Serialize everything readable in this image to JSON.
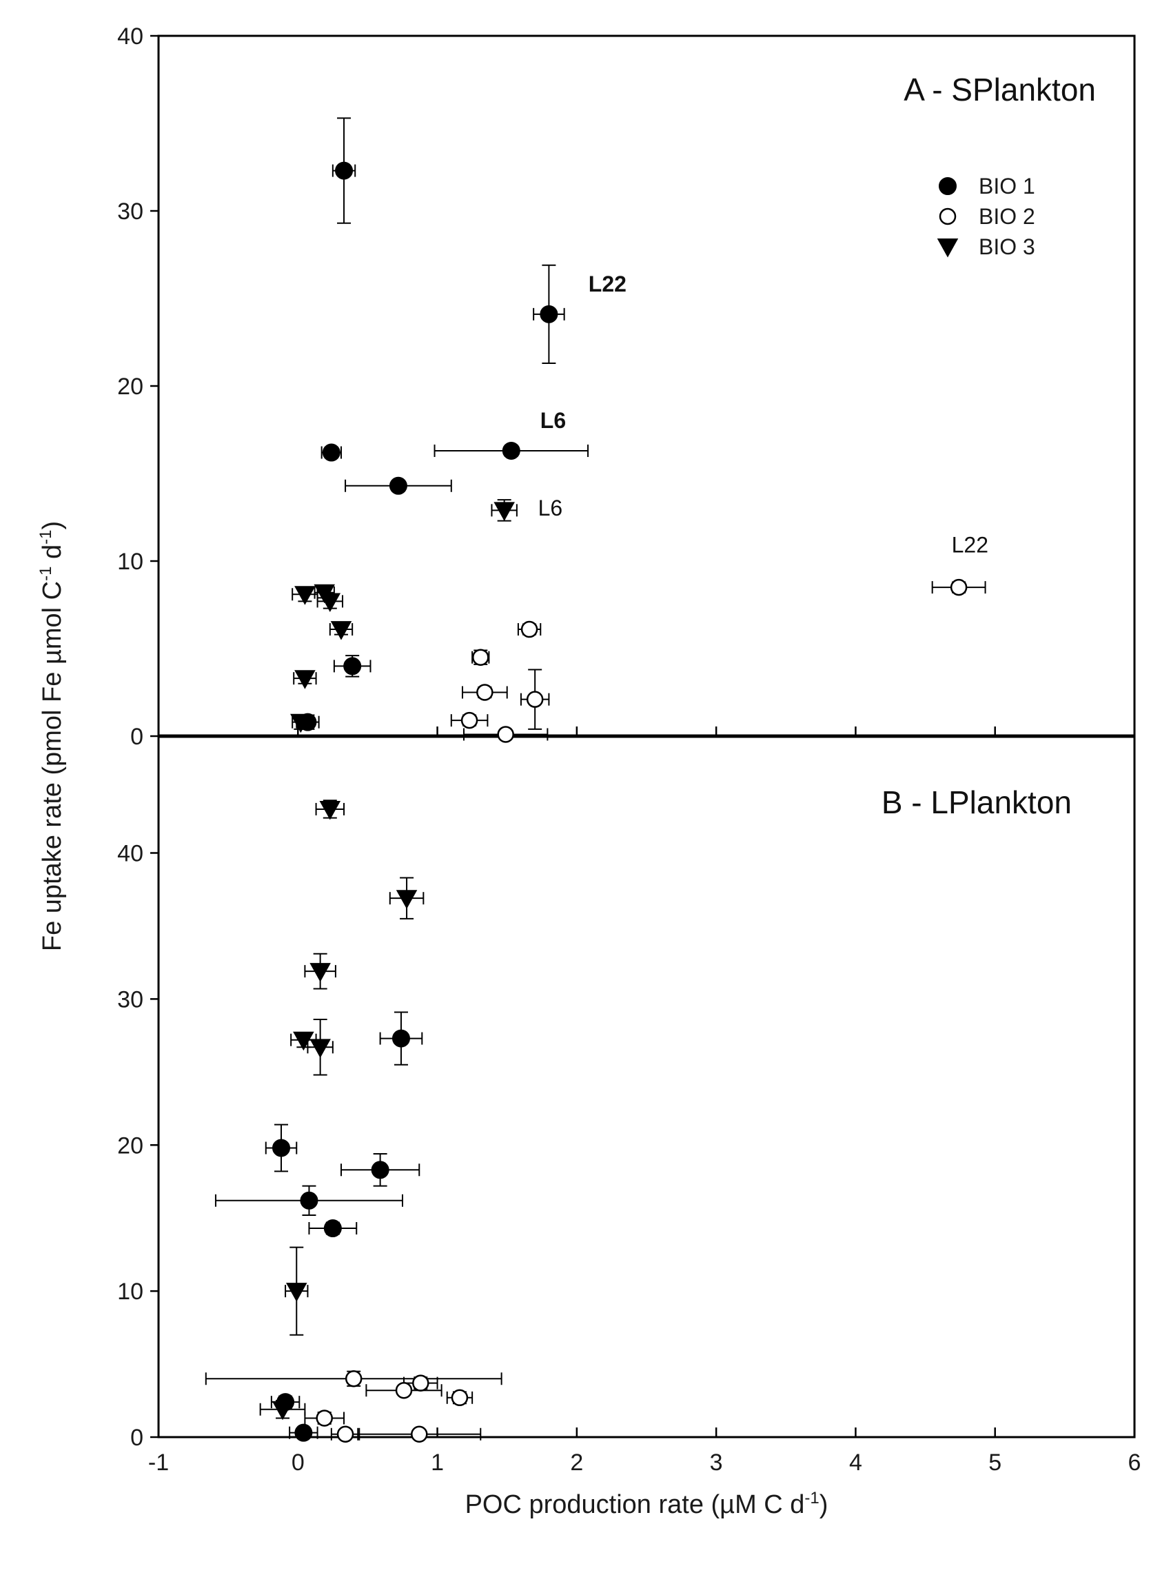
{
  "chart_data": [
    {
      "type": "scatter",
      "panel": "A",
      "title": "A - SPlankton",
      "xlabel": "POC production rate (µM C d-1)",
      "ylabel": "Fe uptake rate (pmol Fe µmol C-1 d-1)",
      "xlim": [
        -1,
        6
      ],
      "ylim": [
        0,
        40
      ],
      "yticks": [
        "0",
        "10",
        "20",
        "30",
        "40"
      ],
      "legend": {
        "position": "top-right",
        "entries": [
          {
            "name": "BIO 1",
            "marker": "filled-circle"
          },
          {
            "name": "BIO 2",
            "marker": "open-circle"
          },
          {
            "name": "BIO 3",
            "marker": "filled-triangle-down"
          }
        ]
      },
      "series": [
        {
          "name": "BIO 1",
          "marker": "filled-circle",
          "points": [
            {
              "x": 0.33,
              "y": 32.3,
              "xerr": 0.08,
              "yerr": 3.0
            },
            {
              "x": 1.8,
              "y": 24.1,
              "xerr": 0.11,
              "yerr": 2.8
            },
            {
              "x": 0.24,
              "y": 16.2,
              "xerr": 0.07,
              "yerr": 0.3
            },
            {
              "x": 1.53,
              "y": 16.3,
              "xerr": 0.55,
              "yerr": 0.3
            },
            {
              "x": 0.72,
              "y": 14.3,
              "xerr": 0.38,
              "yerr": 0.3
            },
            {
              "x": 0.39,
              "y": 4.0,
              "xerr": 0.13,
              "yerr": 0.6
            },
            {
              "x": 0.07,
              "y": 0.8,
              "xerr": 0.08,
              "yerr": 0.4
            }
          ]
        },
        {
          "name": "BIO 2",
          "marker": "open-circle",
          "points": [
            {
              "x": 4.74,
              "y": 8.5,
              "xerr": 0.19,
              "yerr": 0.3
            },
            {
              "x": 1.66,
              "y": 6.1,
              "xerr": 0.08,
              "yerr": 0.3
            },
            {
              "x": 1.31,
              "y": 4.5,
              "xerr": 0.06,
              "yerr": 0.4
            },
            {
              "x": 1.34,
              "y": 2.5,
              "xerr": 0.16,
              "yerr": 0.3
            },
            {
              "x": 1.7,
              "y": 2.1,
              "xerr": 0.1,
              "yerr": 1.7
            },
            {
              "x": 1.23,
              "y": 0.9,
              "xerr": 0.13,
              "yerr": 0.3
            },
            {
              "x": 1.49,
              "y": 0.1,
              "xerr": 0.3,
              "yerr": 0.2
            }
          ]
        },
        {
          "name": "BIO 3",
          "marker": "filled-triangle-down",
          "points": [
            {
              "x": 1.48,
              "y": 12.9,
              "xerr": 0.09,
              "yerr": 0.6
            },
            {
              "x": 0.05,
              "y": 8.1,
              "xerr": 0.09,
              "yerr": 0.4
            },
            {
              "x": 0.19,
              "y": 8.2,
              "xerr": 0.07,
              "yerr": 0.3
            },
            {
              "x": 0.23,
              "y": 7.7,
              "xerr": 0.09,
              "yerr": 0.4
            },
            {
              "x": 0.31,
              "y": 6.1,
              "xerr": 0.08,
              "yerr": 0.3
            },
            {
              "x": 0.05,
              "y": 3.3,
              "xerr": 0.08,
              "yerr": 0.3
            },
            {
              "x": 0.02,
              "y": 0.8,
              "xerr": 0.06,
              "yerr": 0.4
            }
          ]
        }
      ],
      "annotations": [
        {
          "text": "L22",
          "x": 2.22,
          "y": 25.4,
          "bold": true
        },
        {
          "text": "L6",
          "x": 1.83,
          "y": 17.6,
          "bold": true
        },
        {
          "text": "L6",
          "x": 1.81,
          "y": 12.6,
          "bold": false
        },
        {
          "text": "L22",
          "x": 4.82,
          "y": 10.5,
          "bold": false
        }
      ]
    },
    {
      "type": "scatter",
      "panel": "B",
      "title": "B - LPlankton",
      "xlabel": "POC production rate (µM C d-1)",
      "ylabel": "Fe uptake rate (pmol Fe µmol C-1 d-1)",
      "xlim": [
        -1,
        6
      ],
      "ylim": [
        0,
        48
      ],
      "xticks": [
        "-1",
        "0",
        "1",
        "2",
        "3",
        "4",
        "5",
        "6"
      ],
      "yticks": [
        "0",
        "10",
        "20",
        "30",
        "40"
      ],
      "series": [
        {
          "name": "BIO 1",
          "marker": "filled-circle",
          "points": [
            {
              "x": 0.74,
              "y": 27.3,
              "xerr": 0.15,
              "yerr": 1.8
            },
            {
              "x": -0.12,
              "y": 19.8,
              "xerr": 0.11,
              "yerr": 1.6
            },
            {
              "x": 0.59,
              "y": 18.3,
              "xerr": 0.28,
              "yerr": 1.1
            },
            {
              "x": 0.08,
              "y": 16.2,
              "xerr": 0.67,
              "yerr": 1.0
            },
            {
              "x": 0.25,
              "y": 14.3,
              "xerr": 0.17,
              "yerr": 0.4
            },
            {
              "x": -0.09,
              "y": 2.4,
              "xerr": 0.1,
              "yerr": 0.4
            },
            {
              "x": 0.04,
              "y": 0.3,
              "xerr": 0.1,
              "yerr": 0.3
            }
          ]
        },
        {
          "name": "BIO 2",
          "marker": "open-circle",
          "points": [
            {
              "x": 0.4,
              "y": 4.0,
              "xerr": 1.06,
              "yerr": 0.5
            },
            {
              "x": 0.88,
              "y": 3.7,
              "xerr": 0.12,
              "yerr": 0.4
            },
            {
              "x": 0.76,
              "y": 3.2,
              "xerr": 0.27,
              "yerr": 0.3
            },
            {
              "x": 1.16,
              "y": 2.7,
              "xerr": 0.09,
              "yerr": 0.4
            },
            {
              "x": 0.19,
              "y": 1.3,
              "xerr": 0.14,
              "yerr": 0.4
            },
            {
              "x": 0.34,
              "y": 0.2,
              "xerr": 0.1,
              "yerr": 0.3
            },
            {
              "x": 0.87,
              "y": 0.2,
              "xerr": 0.44,
              "yerr": 0.2
            }
          ]
        },
        {
          "name": "BIO 3",
          "marker": "filled-triangle-down",
          "points": [
            {
              "x": 0.23,
              "y": 43.0,
              "xerr": 0.1,
              "yerr": 0.6
            },
            {
              "x": 0.78,
              "y": 36.9,
              "xerr": 0.12,
              "yerr": 1.4
            },
            {
              "x": 0.16,
              "y": 31.9,
              "xerr": 0.11,
              "yerr": 1.2
            },
            {
              "x": 0.04,
              "y": 27.2,
              "xerr": 0.09,
              "yerr": 0.5
            },
            {
              "x": 0.16,
              "y": 26.7,
              "xerr": 0.09,
              "yerr": 1.9
            },
            {
              "x": -0.01,
              "y": 10.0,
              "xerr": 0.08,
              "yerr": 3.0
            },
            {
              "x": -0.11,
              "y": 1.9,
              "xerr": 0.16,
              "yerr": 0.6
            }
          ]
        }
      ],
      "annotations": []
    }
  ],
  "axis_title_x": {
    "main": "POC production rate (µM C d",
    "sup": "-1",
    "end": ")"
  },
  "axis_title_y": {
    "main": "Fe uptake rate (pmol Fe µmol C",
    "sup1": "-1",
    "mid": " d",
    "sup2": "-1",
    "end": ")"
  }
}
